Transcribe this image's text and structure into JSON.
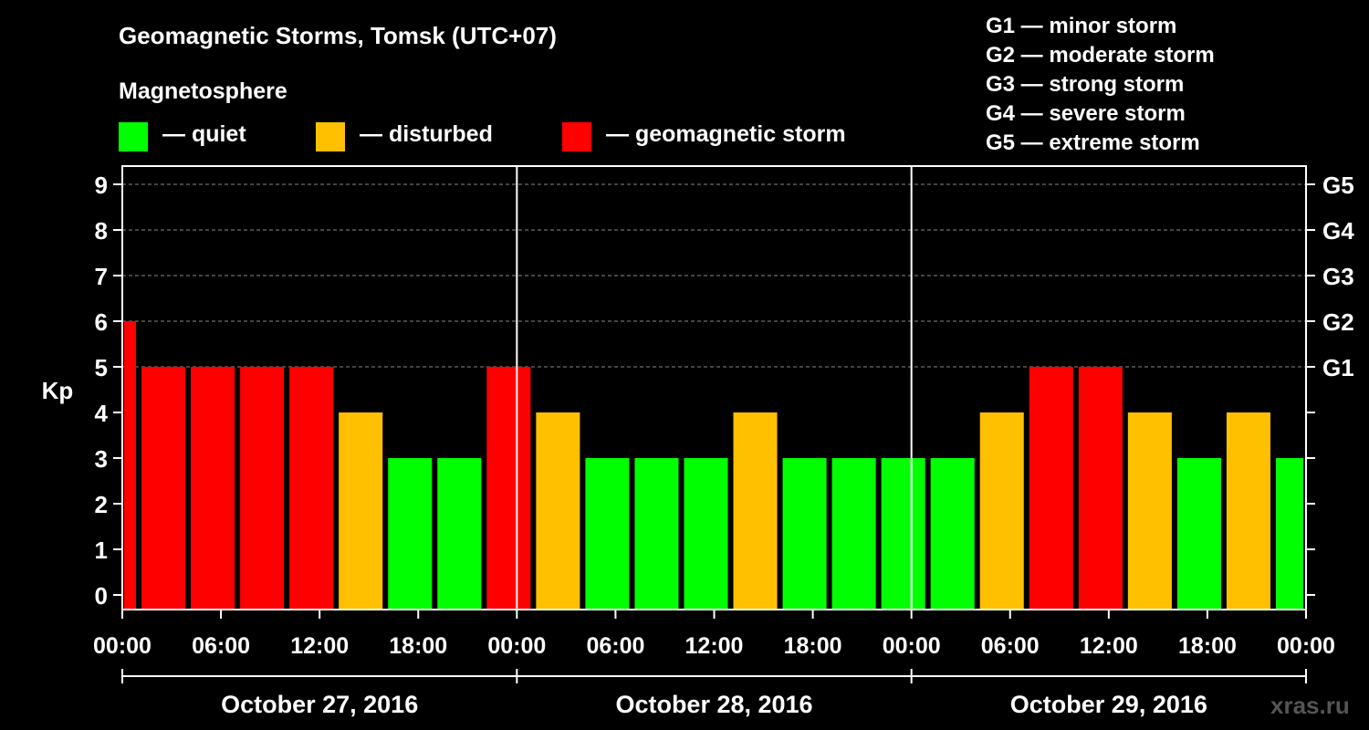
{
  "title": "Geomagnetic Storms, Tomsk (UTC+07)",
  "magnetosphere_label": "Magnetosphere",
  "legend": [
    {
      "label": "— quiet",
      "color": "#00ff00"
    },
    {
      "label": "— disturbed",
      "color": "#ffc000"
    },
    {
      "label": "— geomagnetic storm",
      "color": "#ff0000"
    }
  ],
  "storm_scale": [
    "G1 — minor storm",
    "G2 — moderate storm",
    "G3 — strong storm",
    "G4 — severe storm",
    "G5 — extreme storm"
  ],
  "watermark": "xras.ru",
  "chart_data": {
    "type": "bar",
    "title": "Geomagnetic Storms, Tomsk (UTC+07)",
    "ylabel": "Kp",
    "ylim": [
      0,
      9
    ],
    "yticks": [
      "0",
      "1",
      "2",
      "3",
      "4",
      "5",
      "6",
      "7",
      "8",
      "9"
    ],
    "right_ticks": [
      {
        "value": 5,
        "label": "G1"
      },
      {
        "value": 6,
        "label": "G2"
      },
      {
        "value": 7,
        "label": "G3"
      },
      {
        "value": 8,
        "label": "G4"
      },
      {
        "value": 9,
        "label": "G5"
      }
    ],
    "xlim_hours": [
      0,
      72
    ],
    "xtick_labels": [
      "00:00",
      "06:00",
      "12:00",
      "18:00",
      "00:00",
      "06:00",
      "12:00",
      "18:00",
      "00:00",
      "06:00",
      "12:00",
      "18:00",
      "00:00"
    ],
    "days": [
      "October 27, 2016",
      "October 28, 2016",
      "October 29, 2016"
    ],
    "colors": {
      "quiet": "#00ff00",
      "disturbed": "#ffc000",
      "storm": "#ff0000"
    },
    "bars": [
      {
        "start": 0,
        "end": 1,
        "kp": 6,
        "level": "storm"
      },
      {
        "start": 1,
        "end": 4,
        "kp": 5,
        "level": "storm"
      },
      {
        "start": 4,
        "end": 7,
        "kp": 5,
        "level": "storm"
      },
      {
        "start": 7,
        "end": 10,
        "kp": 5,
        "level": "storm"
      },
      {
        "start": 10,
        "end": 13,
        "kp": 5,
        "level": "storm"
      },
      {
        "start": 13,
        "end": 16,
        "kp": 4,
        "level": "disturbed"
      },
      {
        "start": 16,
        "end": 19,
        "kp": 3,
        "level": "quiet"
      },
      {
        "start": 19,
        "end": 22,
        "kp": 3,
        "level": "quiet"
      },
      {
        "start": 22,
        "end": 25,
        "kp": 5,
        "level": "storm"
      },
      {
        "start": 25,
        "end": 28,
        "kp": 4,
        "level": "disturbed"
      },
      {
        "start": 28,
        "end": 31,
        "kp": 3,
        "level": "quiet"
      },
      {
        "start": 31,
        "end": 34,
        "kp": 3,
        "level": "quiet"
      },
      {
        "start": 34,
        "end": 37,
        "kp": 3,
        "level": "quiet"
      },
      {
        "start": 37,
        "end": 40,
        "kp": 4,
        "level": "disturbed"
      },
      {
        "start": 40,
        "end": 43,
        "kp": 3,
        "level": "quiet"
      },
      {
        "start": 43,
        "end": 46,
        "kp": 3,
        "level": "quiet"
      },
      {
        "start": 46,
        "end": 49,
        "kp": 3,
        "level": "quiet"
      },
      {
        "start": 49,
        "end": 52,
        "kp": 3,
        "level": "quiet"
      },
      {
        "start": 52,
        "end": 55,
        "kp": 4,
        "level": "disturbed"
      },
      {
        "start": 55,
        "end": 58,
        "kp": 5,
        "level": "storm"
      },
      {
        "start": 58,
        "end": 61,
        "kp": 5,
        "level": "storm"
      },
      {
        "start": 61,
        "end": 64,
        "kp": 4,
        "level": "disturbed"
      },
      {
        "start": 64,
        "end": 67,
        "kp": 3,
        "level": "quiet"
      },
      {
        "start": 67,
        "end": 70,
        "kp": 4,
        "level": "disturbed"
      },
      {
        "start": 70,
        "end": 72,
        "kp": 3,
        "level": "quiet"
      }
    ]
  }
}
